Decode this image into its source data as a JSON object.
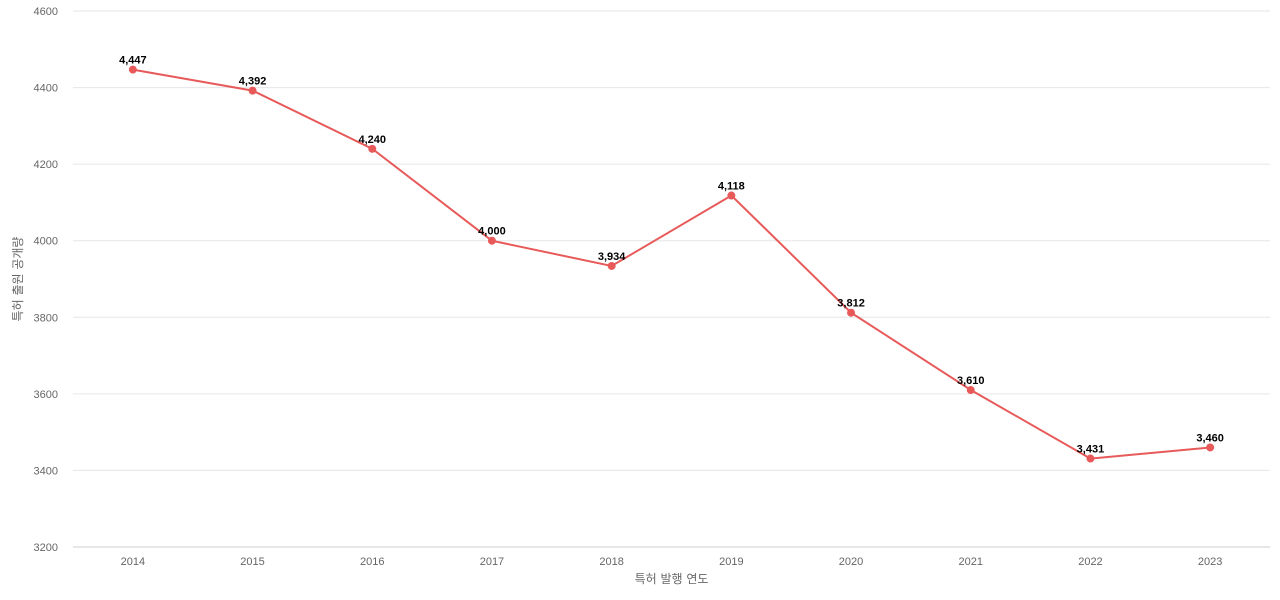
{
  "chart_data": {
    "type": "line",
    "title": "",
    "xlabel": "특허 발행 연도",
    "ylabel": "특허 출원 공개량",
    "x": [
      "2014",
      "2015",
      "2016",
      "2017",
      "2018",
      "2019",
      "2020",
      "2021",
      "2022",
      "2023"
    ],
    "series": [
      {
        "values": [
          4447,
          4392,
          4240,
          4000,
          3934,
          4118,
          3812,
          3610,
          3431,
          3460
        ],
        "color": "#e85a5a"
      }
    ],
    "data_labels": [
      "4,447",
      "4,392",
      "4,240",
      "4,000",
      "3,934",
      "4,118",
      "3,812",
      "3,610",
      "3,431",
      "3,460"
    ],
    "ylim": [
      3200,
      4600
    ],
    "yticks": [
      3200,
      3400,
      3600,
      3800,
      4000,
      4200,
      4400,
      4600
    ],
    "grid": true,
    "legend": "none"
  }
}
